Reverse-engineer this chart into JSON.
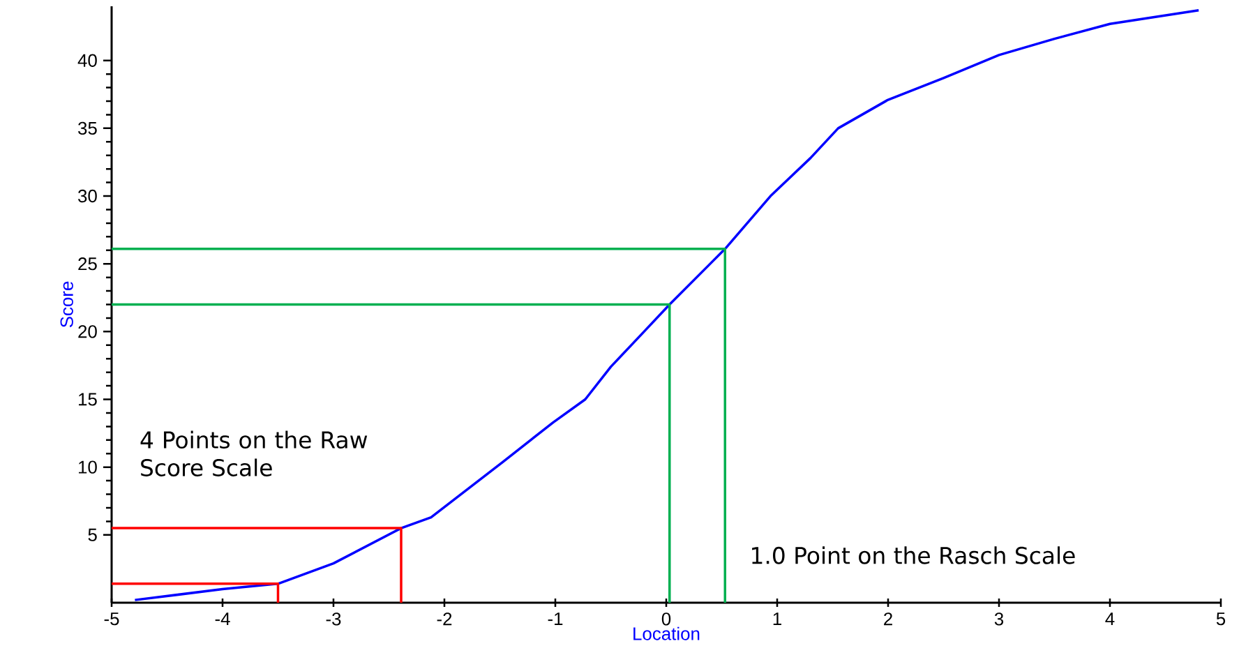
{
  "chart_data": {
    "type": "line",
    "xlabel": "Location",
    "ylabel": "Score",
    "xlim": [
      -5,
      5
    ],
    "xticks": [
      -5,
      -4,
      -3,
      -2,
      -1,
      0,
      1,
      2,
      3,
      4,
      5
    ],
    "ylim": [
      0,
      44
    ],
    "yticks": [
      5,
      10,
      15,
      20,
      25,
      30,
      35,
      40
    ],
    "marker": "none",
    "line_style": "solid",
    "series": [
      {
        "color": "#0000ff",
        "x": [
          -4.79,
          -4.0,
          -3.5,
          -3.0,
          -2.39,
          -2.12,
          -1.47,
          -1.02,
          -0.73,
          -0.5,
          -0.2,
          0.03,
          0.53,
          0.94,
          1.3,
          1.55,
          2.0,
          2.5,
          3.0,
          3.5,
          4.0,
          4.8
        ],
        "values": [
          0.2,
          1.0,
          1.4,
          2.9,
          5.5,
          6.3,
          10.4,
          13.3,
          15,
          17.4,
          20,
          22,
          26.1,
          30,
          32.8,
          35,
          37.1,
          38.7,
          40.4,
          41.6,
          42.7,
          43.7
        ]
      },
      {
        "color": "#ff0000",
        "x": [
          -5,
          -3.5,
          -3.5
        ],
        "values": [
          1.4,
          1.4,
          0
        ]
      },
      {
        "color": "#ff0000",
        "x": [
          -5,
          -2.39,
          -2.39
        ],
        "values": [
          5.5,
          5.5,
          0
        ]
      },
      {
        "color": "#00b050",
        "x": [
          -5,
          0.03,
          0.03
        ],
        "values": [
          22,
          22,
          0
        ]
      },
      {
        "color": "#00b050",
        "x": [
          -5,
          0.53,
          0.53
        ],
        "values": [
          26.1,
          26.1,
          0
        ]
      }
    ],
    "annotations": [
      "4 Points on the Raw Score Scale",
      "1.0 Point on the Rasch Scale"
    ]
  }
}
